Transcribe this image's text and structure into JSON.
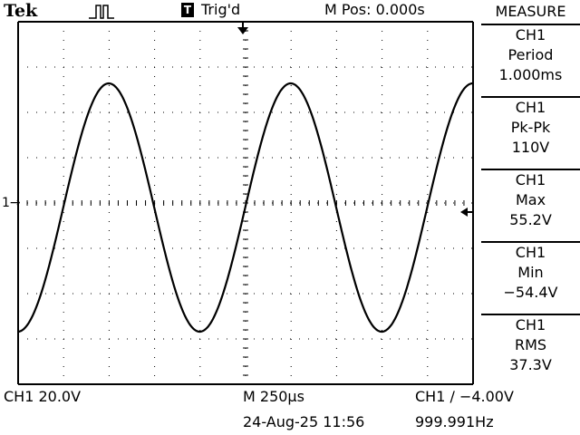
{
  "header": {
    "brand": "Tek",
    "trigger_badge": "T",
    "trigger_status": "Trig'd",
    "main_position": "M Pos: 0.000s"
  },
  "measure_menu": {
    "title": "MEASURE",
    "items": [
      {
        "source": "CH1",
        "type": "Period",
        "value": "1.000ms"
      },
      {
        "source": "CH1",
        "type": "Pk-Pk",
        "value": "110V"
      },
      {
        "source": "CH1",
        "type": "Max",
        "value": "55.2V"
      },
      {
        "source": "CH1",
        "type": "Min",
        "value": "−54.4V"
      },
      {
        "source": "CH1",
        "type": "RMS",
        "value": "37.3V"
      }
    ]
  },
  "footer": {
    "channel_scale": "CH1  20.0V",
    "timebase": "M 250µs",
    "trigger_setting": "CH1 ∕ −4.00V",
    "date_time": "24-Aug-25 11:56",
    "frequency": "999.991Hz"
  },
  "markers": {
    "ch1_ground": "1→"
  },
  "waveform": {
    "max_v": 55.2,
    "min_v": -54.4,
    "period_ms": 1.0
  }
}
